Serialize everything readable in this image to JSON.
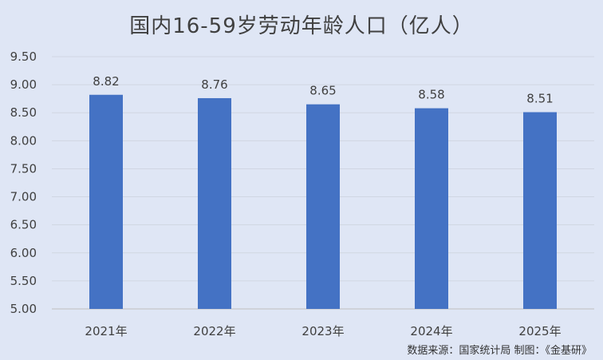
{
  "chart_data": {
    "type": "bar",
    "title": "国内16-59岁劳动年龄人口（亿人）",
    "categories": [
      "2021年",
      "2022年",
      "2023年",
      "2024年",
      "2025年"
    ],
    "values": [
      8.82,
      8.76,
      8.65,
      8.58,
      8.51
    ],
    "data_labels": [
      "8.82",
      "8.76",
      "8.65",
      "8.58",
      "8.51"
    ],
    "ylim": [
      5.0,
      9.5
    ],
    "yticks": [
      "5.00",
      "5.50",
      "6.00",
      "6.50",
      "7.00",
      "7.50",
      "8.00",
      "8.50",
      "9.00",
      "9.50"
    ],
    "grid": true,
    "legend": "none",
    "xlabel": "",
    "ylabel": "",
    "bar_color": "#4472c4"
  },
  "footer": {
    "source": "数据来源：国家统计局   制图：《金基研》"
  }
}
